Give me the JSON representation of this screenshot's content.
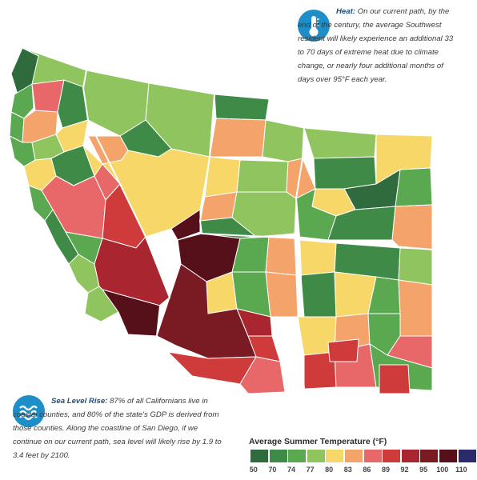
{
  "heat_callout": {
    "icon": "thermometer-icon",
    "label": "Heat:",
    "text": "On our current path, by the end of the century, the average Southwest resident will likely experience an additional 33 to 70 days of extreme heat due to climate change, or nearly four additional months of days over 95°F each year."
  },
  "sea_callout": {
    "icon": "water-waves-icon",
    "label": "Sea Level Rise:",
    "text": "87% of all Californians live in coastal counties, and 80% of the state's GDP is derived from those counties. Along the coastline of San Diego, if we continue on our current path, sea level will likely rise by 1.9 to 3.4 feet by 2100."
  },
  "legend": {
    "title": "Average Summer Temperature (°F)",
    "colors": [
      "#2f6b3c",
      "#3f8a47",
      "#5aa84f",
      "#8fc45f",
      "#f6d768",
      "#f4a46a",
      "#e8686a",
      "#cf3a3a",
      "#a92530",
      "#7a1a22",
      "#56101a",
      "#2b2a6a"
    ],
    "labels": [
      "50",
      "70",
      "74",
      "77",
      "80",
      "83",
      "86",
      "89",
      "92",
      "95",
      "100",
      "110"
    ]
  },
  "icons": [
    "thermometer-icon",
    "water-waves-icon"
  ]
}
